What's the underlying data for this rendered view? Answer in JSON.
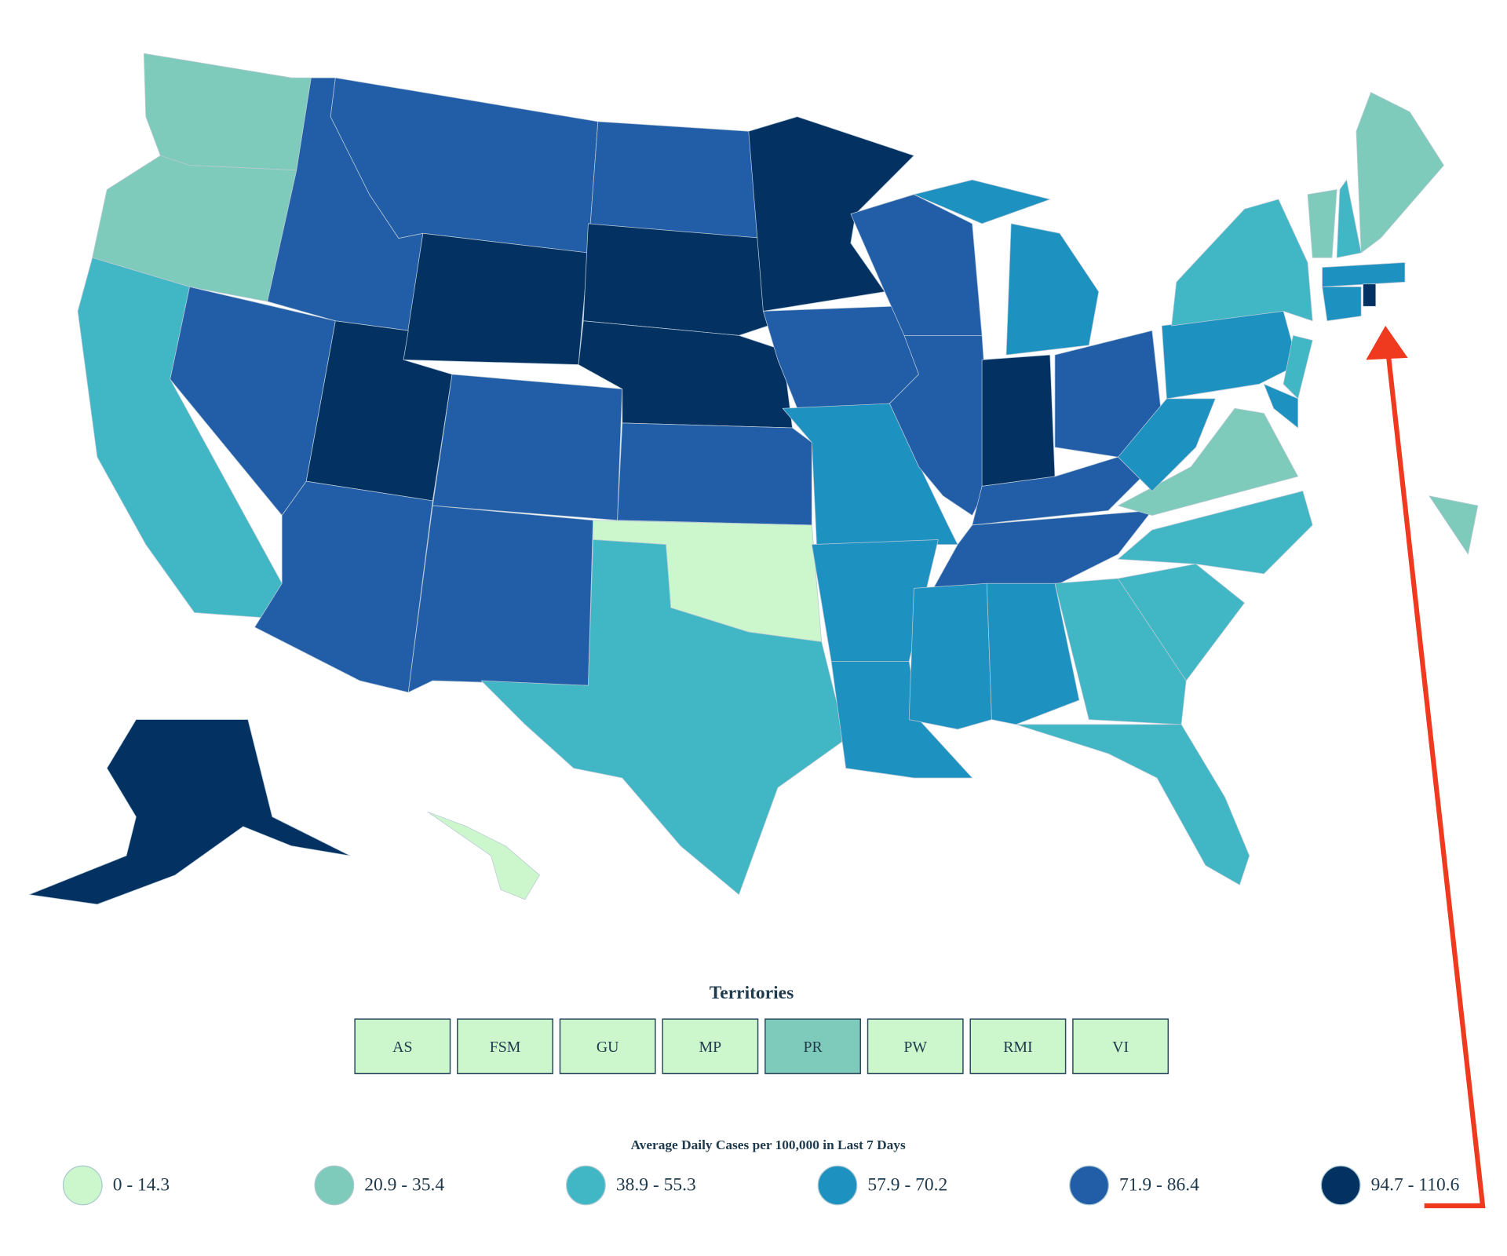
{
  "territories": {
    "title": "Territories",
    "buttons": [
      "AS",
      "FSM",
      "GU",
      "MP",
      "PR",
      "PW",
      "RMI",
      "VI"
    ]
  },
  "legend": {
    "title": "Average Daily Cases per 100,000 in Last 7 Days",
    "items": [
      {
        "label": "0 - 14.3",
        "color": "#ccf7cc"
      },
      {
        "label": "20.9 - 35.4",
        "color": "#7fcbbb"
      },
      {
        "label": "38.9 - 55.3",
        "color": "#41b6c4"
      },
      {
        "label": "57.9 - 70.2",
        "color": "#1d91c0"
      },
      {
        "label": "71.9 - 86.4",
        "color": "#225ea8"
      },
      {
        "label": "94.7 - 110.6",
        "color": "#033262"
      }
    ]
  }
}
